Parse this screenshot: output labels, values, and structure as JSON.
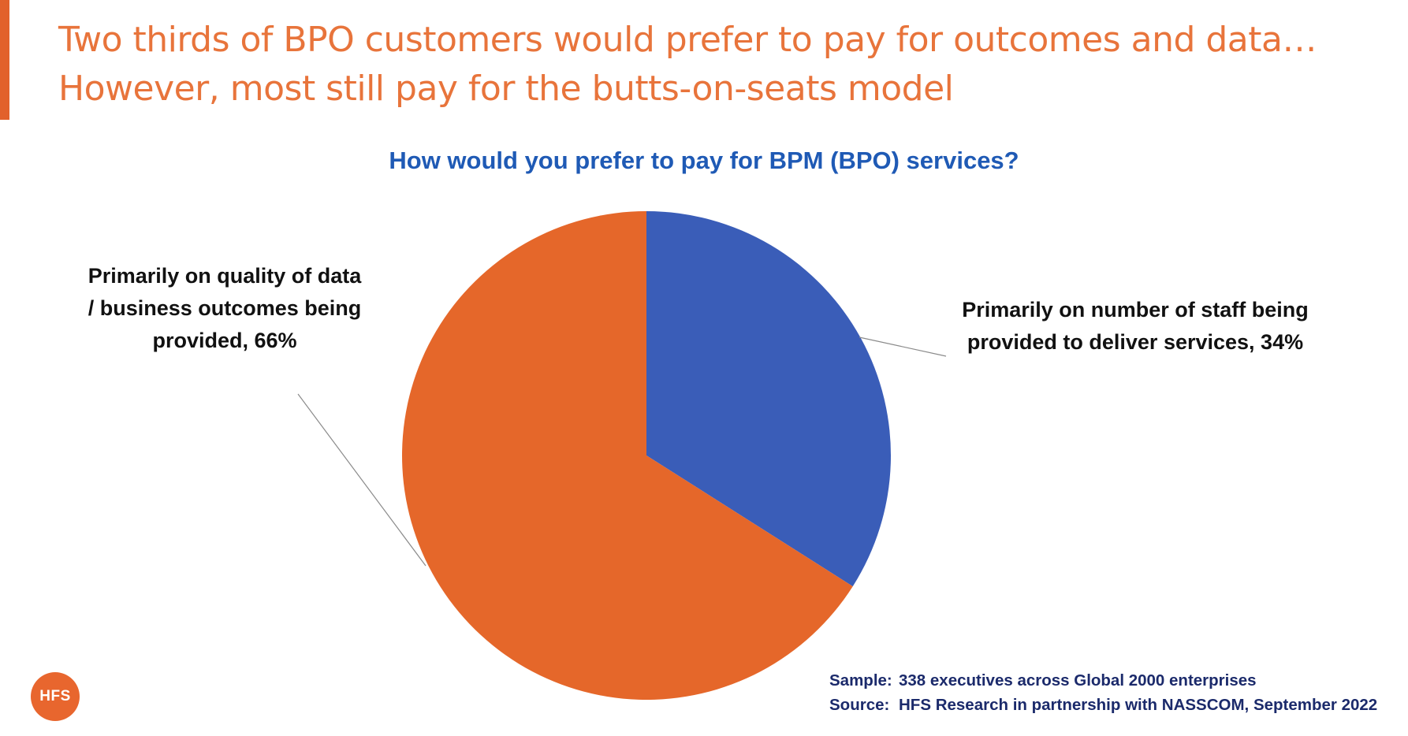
{
  "header": {
    "title_line1": "Two thirds of BPO customers would prefer to pay for outcomes and data…",
    "title_line2": "However, most still pay for the butts-on-seats model"
  },
  "chart_data": {
    "type": "pie",
    "title": "How would you prefer to pay for BPM (BPO) services?",
    "slices": [
      {
        "label": "Primarily on number of staff being provided to deliver services",
        "value": 34,
        "display": "Primarily on number of staff being provided to deliver services, 34%",
        "color": "#3A5DB8"
      },
      {
        "label": "Primarily on quality of data / business outcomes being provided",
        "value": 66,
        "display": "Primarily on quality of data / business outcomes being provided, 66%",
        "color": "#E5672A"
      }
    ]
  },
  "footnote": {
    "sample_key": "Sample:",
    "sample_value": "338 executives across Global 2000 enterprises",
    "source_key": "Source:",
    "source_value": "HFS Research in partnership with NASSCOM, September 2022"
  },
  "brand": {
    "logo_text": "HFS",
    "accent_color": "#E2612B"
  }
}
